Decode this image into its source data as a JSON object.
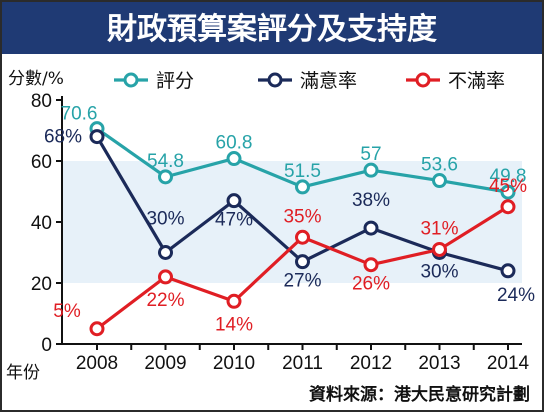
{
  "chart_data": {
    "type": "line",
    "title": "財政預算案評分及支持度",
    "ylabel": "分數/%",
    "xlabel": "年份",
    "source": "資料來源：港大民意研究計劃",
    "x": [
      "2008",
      "2009",
      "2010",
      "2011",
      "2012",
      "2013",
      "2014"
    ],
    "ylim": [
      0,
      80
    ],
    "yticks": [
      "0",
      "20",
      "40",
      "60",
      "80"
    ],
    "legend_position": "top",
    "series": [
      {
        "name": "評分",
        "color": "#27a3a8",
        "values": [
          70.6,
          54.8,
          60.8,
          51.5,
          57,
          53.6,
          49.8
        ],
        "labels": [
          "70.6",
          "54.8",
          "60.8",
          "51.5",
          "57",
          "53.6",
          "49.8"
        ]
      },
      {
        "name": "滿意率",
        "color": "#1b2a59",
        "values": [
          68,
          30,
          47,
          27,
          38,
          30,
          24
        ],
        "labels": [
          "68%",
          "30%",
          "47%",
          "27%",
          "38%",
          "30%",
          "24%"
        ]
      },
      {
        "name": "不滿率",
        "color": "#e01e24",
        "values": [
          5,
          22,
          14,
          35,
          26,
          31,
          45
        ],
        "labels": [
          "5%",
          "22%",
          "14%",
          "35%",
          "26%",
          "31%",
          "45%"
        ]
      }
    ]
  }
}
